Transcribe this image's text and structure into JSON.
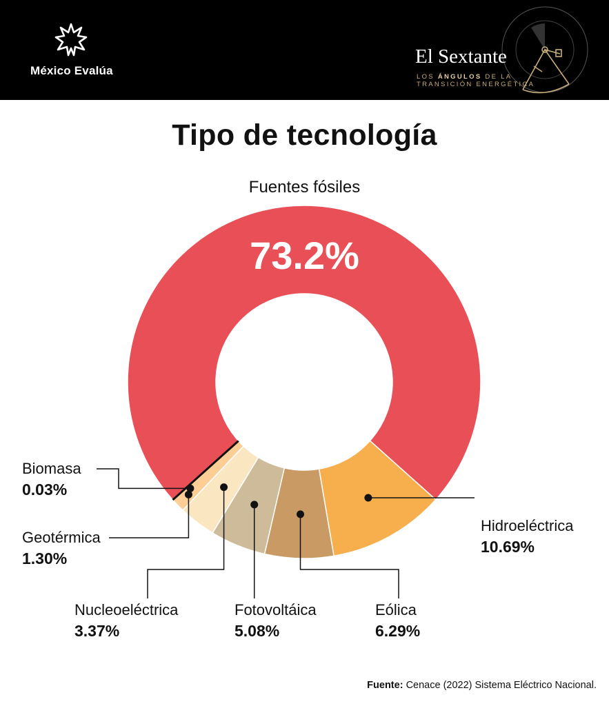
{
  "header": {
    "brand": "México Evalúa",
    "logo_icon": "asterisk-star-icon",
    "sextant_title": "El Sextante",
    "sextant_subtitle_line1_pre": "LOS ",
    "sextant_subtitle_line1_bold": "ÁNGULOS",
    "sextant_subtitle_line1_post": " DE LA",
    "sextant_subtitle_line2": "TRANSICIÓN ENERGÉTICA",
    "sextant_icon": "sextant-icon"
  },
  "chart_data": {
    "type": "pie",
    "title": "Tipo de tecnología",
    "highlight_label": "Fuentes fósiles",
    "highlight_value_text": "73.2%",
    "slices": [
      {
        "label": "Fuentes fósiles",
        "value": 73.2,
        "value_text": "73.2%",
        "color": "#e84f57"
      },
      {
        "label": "Hidroeléctrica",
        "value": 10.69,
        "value_text": "10.69%",
        "color": "#f7ae4c"
      },
      {
        "label": "Eólica",
        "value": 6.29,
        "value_text": "6.29%",
        "color": "#c99a63"
      },
      {
        "label": "Fotovoltáica",
        "value": 5.08,
        "value_text": "5.08%",
        "color": "#cdbb99"
      },
      {
        "label": "Nucleoeléctrica",
        "value": 3.37,
        "value_text": "3.37%",
        "color": "#fbe6c2"
      },
      {
        "label": "Geotérmica",
        "value": 1.3,
        "value_text": "1.30%",
        "color": "#fdcd96"
      },
      {
        "label": "Biomasa",
        "value": 0.03,
        "value_text": "0.03%",
        "color": "#111111"
      }
    ]
  },
  "source": {
    "label": "Fuente:",
    "text": "Cenace (2022) Sistema Eléctrico Nacional."
  }
}
